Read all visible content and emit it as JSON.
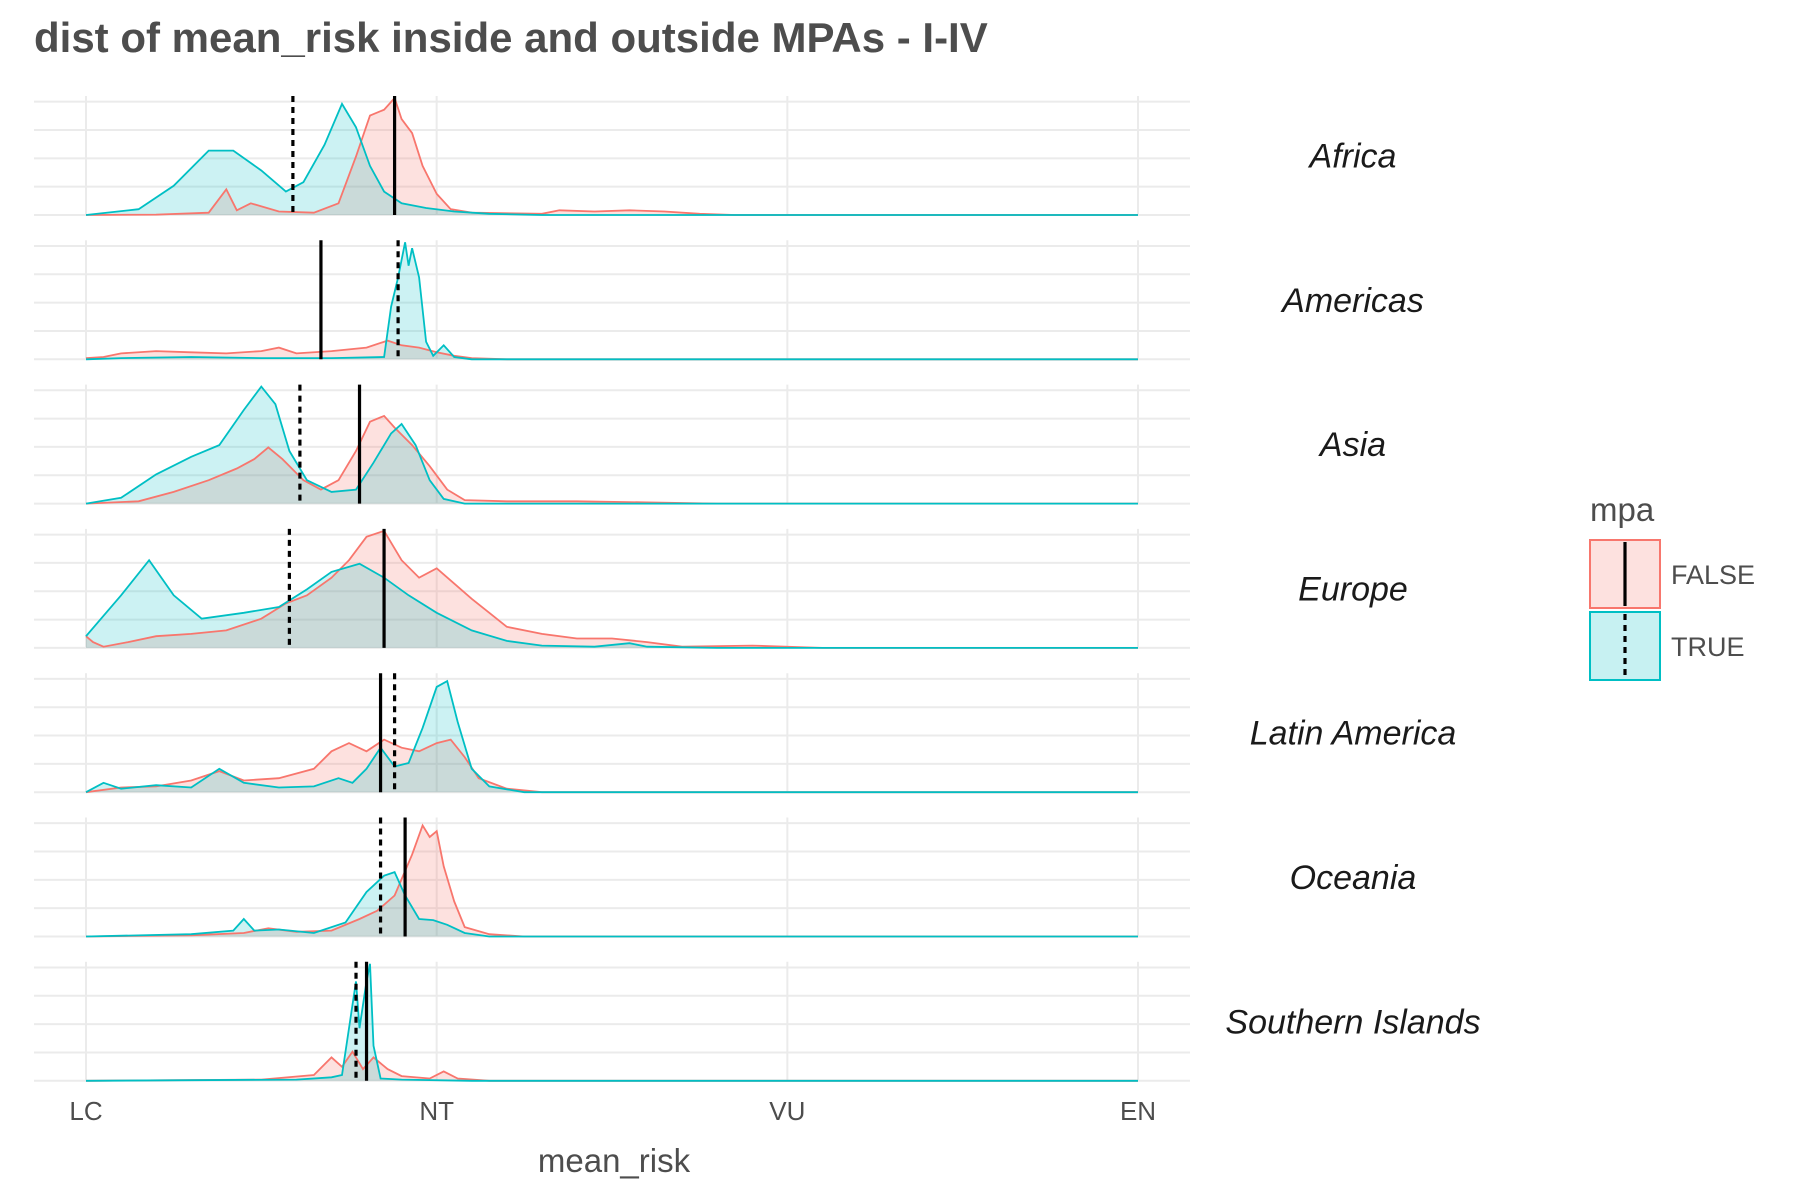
{
  "chart_data": {
    "type": "area",
    "title": "dist of mean_risk inside and outside MPAs - I-IV",
    "xlabel": "mean_risk",
    "ylabel": "",
    "x_ticks": [
      "LC",
      "NT",
      "VU",
      "EN"
    ],
    "xlim": [
      0,
      3
    ],
    "grid": true,
    "legend": {
      "title": "mpa",
      "position": "right",
      "entries": [
        {
          "label": "FALSE",
          "fill": "#f8766d",
          "line": "solid"
        },
        {
          "label": "TRUE",
          "fill": "#00bfc4",
          "line": "dotted"
        }
      ]
    },
    "colors": {
      "FALSE": "#f8766d",
      "TRUE": "#00bfc4"
    },
    "panels": [
      {
        "region": "Africa",
        "mean_false": 0.88,
        "mean_true": 0.59,
        "false_density": [
          [
            0,
            0
          ],
          [
            0.2,
            0.003
          ],
          [
            0.35,
            0.02
          ],
          [
            0.4,
            0.22
          ],
          [
            0.43,
            0.04
          ],
          [
            0.47,
            0.1
          ],
          [
            0.55,
            0.03
          ],
          [
            0.65,
            0.02
          ],
          [
            0.72,
            0.1
          ],
          [
            0.77,
            0.5
          ],
          [
            0.81,
            0.85
          ],
          [
            0.85,
            0.9
          ],
          [
            0.88,
            1.0
          ],
          [
            0.9,
            0.82
          ],
          [
            0.93,
            0.7
          ],
          [
            0.96,
            0.42
          ],
          [
            1.0,
            0.18
          ],
          [
            1.04,
            0.05
          ],
          [
            1.1,
            0.02
          ],
          [
            1.3,
            0.01
          ],
          [
            1.35,
            0.04
          ],
          [
            1.45,
            0.03
          ],
          [
            1.55,
            0.04
          ],
          [
            1.65,
            0.03
          ],
          [
            1.75,
            0.01
          ],
          [
            1.85,
            0
          ],
          [
            3,
            0
          ]
        ],
        "true_density": [
          [
            0,
            0
          ],
          [
            0.15,
            0.05
          ],
          [
            0.25,
            0.25
          ],
          [
            0.35,
            0.55
          ],
          [
            0.42,
            0.55
          ],
          [
            0.5,
            0.38
          ],
          [
            0.57,
            0.2
          ],
          [
            0.62,
            0.28
          ],
          [
            0.68,
            0.6
          ],
          [
            0.73,
            0.95
          ],
          [
            0.77,
            0.75
          ],
          [
            0.81,
            0.42
          ],
          [
            0.85,
            0.2
          ],
          [
            0.9,
            0.1
          ],
          [
            0.97,
            0.06
          ],
          [
            1.05,
            0.03
          ],
          [
            1.15,
            0.01
          ],
          [
            1.3,
            0
          ],
          [
            3,
            0
          ]
        ]
      },
      {
        "region": "Americas",
        "mean_false": 0.67,
        "mean_true": 0.89,
        "false_density": [
          [
            0,
            0.01
          ],
          [
            0.05,
            0.02
          ],
          [
            0.1,
            0.05
          ],
          [
            0.2,
            0.07
          ],
          [
            0.3,
            0.06
          ],
          [
            0.4,
            0.05
          ],
          [
            0.5,
            0.07
          ],
          [
            0.55,
            0.1
          ],
          [
            0.6,
            0.05
          ],
          [
            0.7,
            0.07
          ],
          [
            0.8,
            0.1
          ],
          [
            0.86,
            0.16
          ],
          [
            0.9,
            0.12
          ],
          [
            0.95,
            0.1
          ],
          [
            1.0,
            0.06
          ],
          [
            1.05,
            0.03
          ],
          [
            1.1,
            0.01
          ],
          [
            1.2,
            0
          ],
          [
            3,
            0
          ]
        ],
        "true_density": [
          [
            0,
            0
          ],
          [
            0.1,
            0.01
          ],
          [
            0.3,
            0.02
          ],
          [
            0.5,
            0.01
          ],
          [
            0.7,
            0.01
          ],
          [
            0.85,
            0.02
          ],
          [
            0.87,
            0.45
          ],
          [
            0.89,
            0.7
          ],
          [
            0.91,
            1.0
          ],
          [
            0.92,
            0.8
          ],
          [
            0.93,
            0.95
          ],
          [
            0.95,
            0.7
          ],
          [
            0.97,
            0.15
          ],
          [
            0.99,
            0.03
          ],
          [
            1.02,
            0.12
          ],
          [
            1.05,
            0.02
          ],
          [
            1.1,
            0
          ],
          [
            3,
            0
          ]
        ]
      },
      {
        "region": "Asia",
        "mean_false": 0.78,
        "mean_true": 0.61,
        "false_density": [
          [
            0,
            0
          ],
          [
            0.15,
            0.02
          ],
          [
            0.25,
            0.1
          ],
          [
            0.35,
            0.2
          ],
          [
            0.43,
            0.3
          ],
          [
            0.48,
            0.38
          ],
          [
            0.52,
            0.48
          ],
          [
            0.56,
            0.38
          ],
          [
            0.62,
            0.2
          ],
          [
            0.67,
            0.12
          ],
          [
            0.72,
            0.2
          ],
          [
            0.77,
            0.45
          ],
          [
            0.81,
            0.7
          ],
          [
            0.85,
            0.75
          ],
          [
            0.88,
            0.65
          ],
          [
            0.93,
            0.5
          ],
          [
            0.98,
            0.32
          ],
          [
            1.03,
            0.12
          ],
          [
            1.08,
            0.03
          ],
          [
            1.2,
            0.02
          ],
          [
            1.4,
            0.02
          ],
          [
            1.6,
            0.01
          ],
          [
            1.8,
            0
          ],
          [
            3,
            0
          ]
        ],
        "true_density": [
          [
            0,
            0
          ],
          [
            0.1,
            0.05
          ],
          [
            0.2,
            0.25
          ],
          [
            0.3,
            0.4
          ],
          [
            0.38,
            0.5
          ],
          [
            0.45,
            0.8
          ],
          [
            0.5,
            1.0
          ],
          [
            0.54,
            0.85
          ],
          [
            0.58,
            0.45
          ],
          [
            0.63,
            0.2
          ],
          [
            0.7,
            0.1
          ],
          [
            0.77,
            0.12
          ],
          [
            0.82,
            0.35
          ],
          [
            0.87,
            0.6
          ],
          [
            0.9,
            0.68
          ],
          [
            0.94,
            0.5
          ],
          [
            0.98,
            0.2
          ],
          [
            1.02,
            0.04
          ],
          [
            1.08,
            0
          ],
          [
            3,
            0
          ]
        ]
      },
      {
        "region": "Europe",
        "mean_false": 0.85,
        "mean_true": 0.58,
        "false_density": [
          [
            0,
            0.1
          ],
          [
            0.02,
            0.05
          ],
          [
            0.05,
            0.01
          ],
          [
            0.12,
            0.05
          ],
          [
            0.2,
            0.1
          ],
          [
            0.3,
            0.12
          ],
          [
            0.4,
            0.15
          ],
          [
            0.5,
            0.25
          ],
          [
            0.57,
            0.38
          ],
          [
            0.63,
            0.45
          ],
          [
            0.7,
            0.6
          ],
          [
            0.75,
            0.75
          ],
          [
            0.8,
            0.95
          ],
          [
            0.85,
            1.0
          ],
          [
            0.9,
            0.75
          ],
          [
            0.95,
            0.6
          ],
          [
            1.0,
            0.68
          ],
          [
            1.05,
            0.55
          ],
          [
            1.1,
            0.42
          ],
          [
            1.15,
            0.3
          ],
          [
            1.2,
            0.18
          ],
          [
            1.3,
            0.12
          ],
          [
            1.4,
            0.08
          ],
          [
            1.5,
            0.08
          ],
          [
            1.6,
            0.05
          ],
          [
            1.7,
            0.01
          ],
          [
            1.9,
            0.02
          ],
          [
            2.1,
            0
          ],
          [
            3,
            0
          ]
        ],
        "true_density": [
          [
            0,
            0.1
          ],
          [
            0.1,
            0.45
          ],
          [
            0.18,
            0.75
          ],
          [
            0.25,
            0.45
          ],
          [
            0.33,
            0.25
          ],
          [
            0.45,
            0.3
          ],
          [
            0.55,
            0.35
          ],
          [
            0.63,
            0.5
          ],
          [
            0.7,
            0.65
          ],
          [
            0.78,
            0.72
          ],
          [
            0.85,
            0.6
          ],
          [
            0.92,
            0.45
          ],
          [
            1.0,
            0.3
          ],
          [
            1.1,
            0.15
          ],
          [
            1.2,
            0.06
          ],
          [
            1.3,
            0.02
          ],
          [
            1.45,
            0.01
          ],
          [
            1.55,
            0.04
          ],
          [
            1.6,
            0.01
          ],
          [
            1.8,
            0
          ],
          [
            3,
            0
          ]
        ]
      },
      {
        "region": "Latin America",
        "mean_false": 0.84,
        "mean_true": 0.88,
        "false_density": [
          [
            0,
            0
          ],
          [
            0.1,
            0.04
          ],
          [
            0.2,
            0.05
          ],
          [
            0.3,
            0.1
          ],
          [
            0.38,
            0.18
          ],
          [
            0.45,
            0.1
          ],
          [
            0.55,
            0.12
          ],
          [
            0.65,
            0.2
          ],
          [
            0.7,
            0.35
          ],
          [
            0.75,
            0.42
          ],
          [
            0.8,
            0.35
          ],
          [
            0.85,
            0.45
          ],
          [
            0.9,
            0.38
          ],
          [
            0.95,
            0.35
          ],
          [
            1.0,
            0.42
          ],
          [
            1.04,
            0.45
          ],
          [
            1.08,
            0.3
          ],
          [
            1.12,
            0.12
          ],
          [
            1.2,
            0.03
          ],
          [
            1.3,
            0
          ],
          [
            3,
            0
          ]
        ],
        "true_density": [
          [
            0,
            0
          ],
          [
            0.05,
            0.08
          ],
          [
            0.1,
            0.03
          ],
          [
            0.2,
            0.06
          ],
          [
            0.3,
            0.04
          ],
          [
            0.38,
            0.2
          ],
          [
            0.45,
            0.08
          ],
          [
            0.55,
            0.04
          ],
          [
            0.65,
            0.05
          ],
          [
            0.72,
            0.12
          ],
          [
            0.76,
            0.08
          ],
          [
            0.8,
            0.2
          ],
          [
            0.84,
            0.38
          ],
          [
            0.88,
            0.22
          ],
          [
            0.92,
            0.25
          ],
          [
            0.96,
            0.55
          ],
          [
            1.0,
            0.9
          ],
          [
            1.03,
            0.95
          ],
          [
            1.06,
            0.6
          ],
          [
            1.1,
            0.2
          ],
          [
            1.15,
            0.05
          ],
          [
            1.25,
            0
          ],
          [
            3,
            0
          ]
        ]
      },
      {
        "region": "Oceania",
        "mean_false": 0.91,
        "mean_true": 0.84,
        "false_density": [
          [
            0,
            0
          ],
          [
            0.3,
            0.01
          ],
          [
            0.45,
            0.03
          ],
          [
            0.52,
            0.07
          ],
          [
            0.6,
            0.04
          ],
          [
            0.7,
            0.05
          ],
          [
            0.78,
            0.15
          ],
          [
            0.83,
            0.22
          ],
          [
            0.88,
            0.35
          ],
          [
            0.93,
            0.7
          ],
          [
            0.96,
            0.95
          ],
          [
            0.98,
            0.85
          ],
          [
            1.0,
            0.9
          ],
          [
            1.02,
            0.6
          ],
          [
            1.05,
            0.3
          ],
          [
            1.08,
            0.08
          ],
          [
            1.15,
            0.02
          ],
          [
            1.25,
            0
          ],
          [
            3,
            0
          ]
        ],
        "true_density": [
          [
            0,
            0
          ],
          [
            0.3,
            0.02
          ],
          [
            0.42,
            0.05
          ],
          [
            0.45,
            0.15
          ],
          [
            0.48,
            0.05
          ],
          [
            0.55,
            0.06
          ],
          [
            0.65,
            0.03
          ],
          [
            0.74,
            0.12
          ],
          [
            0.8,
            0.38
          ],
          [
            0.85,
            0.52
          ],
          [
            0.88,
            0.55
          ],
          [
            0.91,
            0.35
          ],
          [
            0.95,
            0.15
          ],
          [
            0.99,
            0.14
          ],
          [
            1.03,
            0.1
          ],
          [
            1.08,
            0.03
          ],
          [
            1.15,
            0
          ],
          [
            3,
            0
          ]
        ]
      },
      {
        "region": "Southern Islands",
        "mean_false": 0.8,
        "mean_true": 0.77,
        "false_density": [
          [
            0,
            0
          ],
          [
            0.5,
            0.01
          ],
          [
            0.65,
            0.05
          ],
          [
            0.7,
            0.2
          ],
          [
            0.73,
            0.12
          ],
          [
            0.76,
            0.25
          ],
          [
            0.79,
            0.1
          ],
          [
            0.82,
            0.2
          ],
          [
            0.86,
            0.1
          ],
          [
            0.9,
            0.04
          ],
          [
            0.98,
            0.02
          ],
          [
            1.02,
            0.08
          ],
          [
            1.06,
            0.02
          ],
          [
            1.15,
            0
          ],
          [
            3,
            0
          ]
        ],
        "true_density": [
          [
            0,
            0
          ],
          [
            0.6,
            0.01
          ],
          [
            0.7,
            0.03
          ],
          [
            0.73,
            0.05
          ],
          [
            0.75,
            0.45
          ],
          [
            0.77,
            0.85
          ],
          [
            0.78,
            0.45
          ],
          [
            0.8,
            0.85
          ],
          [
            0.81,
            1.0
          ],
          [
            0.82,
            0.3
          ],
          [
            0.84,
            0.02
          ],
          [
            0.9,
            0.01
          ],
          [
            1.1,
            0
          ],
          [
            3,
            0
          ]
        ]
      }
    ]
  }
}
